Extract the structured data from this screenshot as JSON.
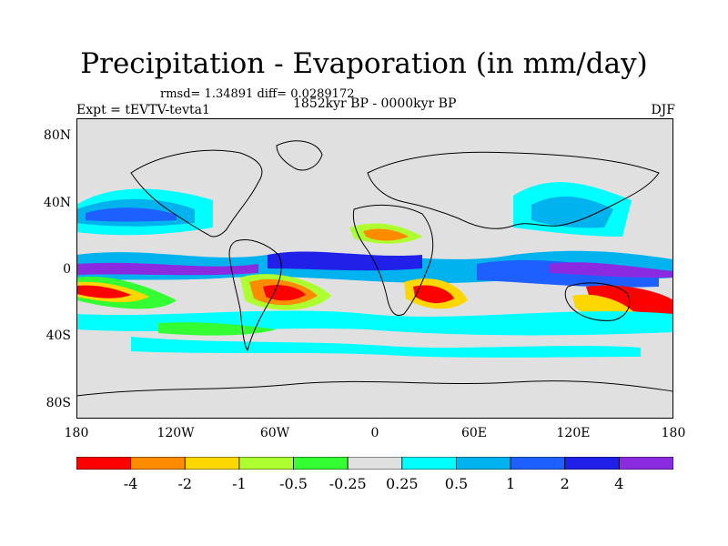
{
  "title": "Precipitation - Evaporation (in mm/day)",
  "stats": "rmsd= 1.34891 diff= 0.0289172",
  "experiment": "Expt = tEVTV-tevta1",
  "period": "1852kyr BP - 0000kyr BP",
  "season": "DJF",
  "lat_labels": [
    "80N",
    "40N",
    "0",
    "40S",
    "80S"
  ],
  "lon_labels": [
    "180",
    "120W",
    "60W",
    "0",
    "60E",
    "120E",
    "180"
  ],
  "colorbar": {
    "labels": [
      "-4",
      "-2",
      "-1",
      "-0.5",
      "-0.25",
      "0.25",
      "0.5",
      "1",
      "2",
      "4"
    ],
    "colors": [
      "#ff0000",
      "#ff8c00",
      "#ffd700",
      "#adff2f",
      "#33ff33",
      "#e0e0e0",
      "#00ffff",
      "#00b2ee",
      "#1e60ff",
      "#2020e8",
      "#8a2be2"
    ]
  }
}
